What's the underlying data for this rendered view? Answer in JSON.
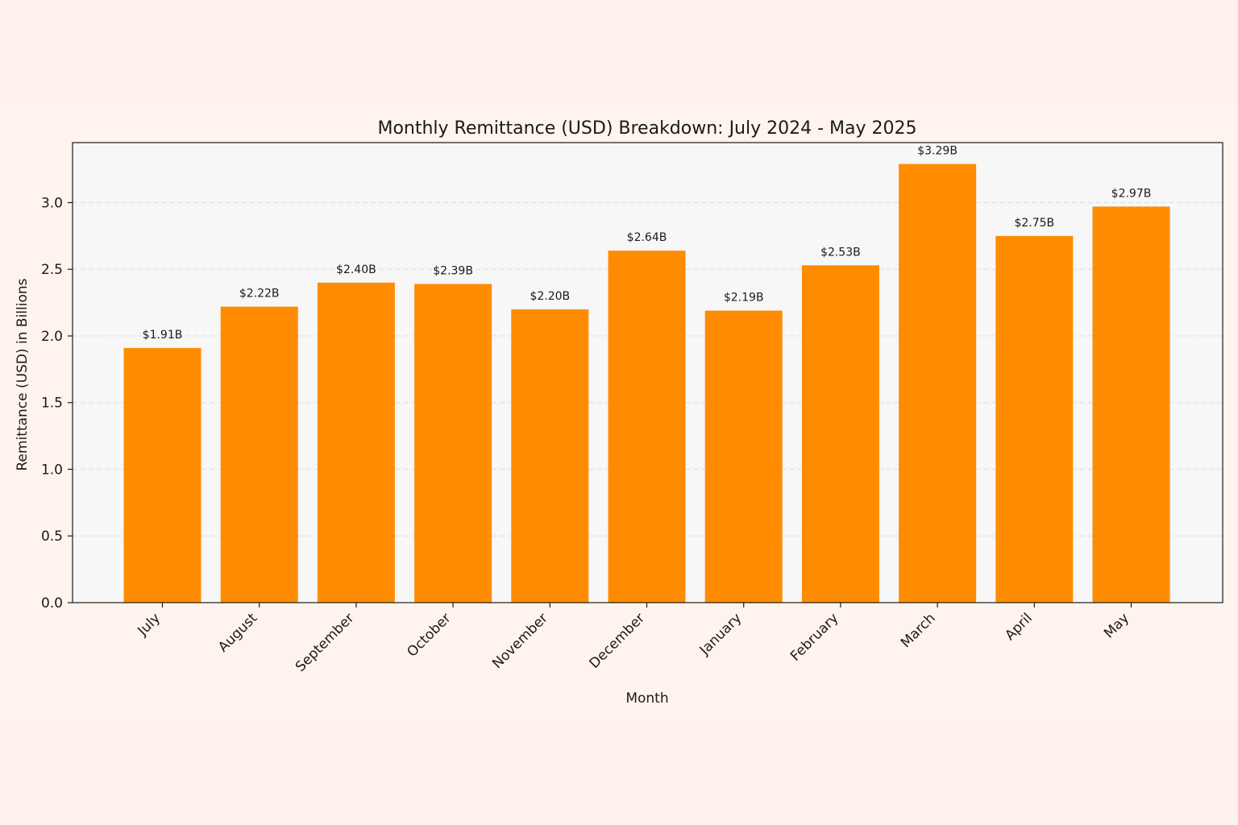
{
  "chart_data": {
    "type": "bar",
    "title": "Monthly Remittance (USD) Breakdown: July 2024 - May 2025",
    "xlabel": "Month",
    "ylabel": "Remittance (USD) in Billions",
    "categories": [
      "July",
      "August",
      "September",
      "October",
      "November",
      "December",
      "January",
      "February",
      "March",
      "April",
      "May"
    ],
    "values": [
      1.91,
      2.22,
      2.4,
      2.39,
      2.2,
      2.64,
      2.19,
      2.53,
      3.29,
      2.75,
      2.97
    ],
    "data_labels": [
      "$1.91B",
      "$2.22B",
      "$2.40B",
      "$2.39B",
      "$2.20B",
      "$2.64B",
      "$2.19B",
      "$2.53B",
      "$3.29B",
      "$2.75B",
      "$2.97B"
    ],
    "ylim": [
      0,
      3.45
    ],
    "yticks": [
      0.0,
      0.5,
      1.0,
      1.5,
      2.0,
      2.5,
      3.0
    ],
    "ytick_labels": [
      "0.0",
      "0.5",
      "1.0",
      "1.5",
      "2.0",
      "2.5",
      "3.0"
    ],
    "grid": "y-dashed",
    "colors": {
      "bar": "#ff8c00",
      "plot_background": "#f7f7f7",
      "page_background": "#fdf3ec",
      "grid": "#dddddd"
    }
  }
}
